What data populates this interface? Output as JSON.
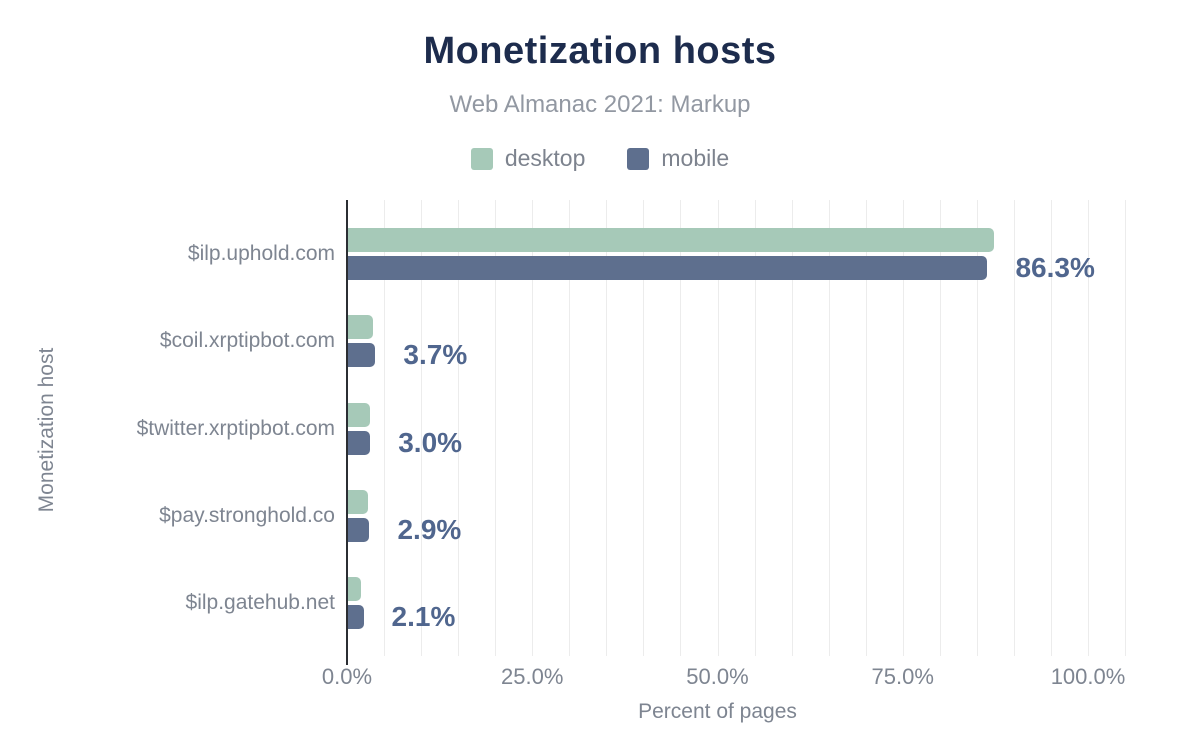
{
  "chart_data": {
    "type": "bar",
    "orientation": "horizontal",
    "title": "Monetization hosts",
    "subtitle": "Web Almanac 2021: Markup",
    "categories": [
      "$ilp.uphold.com",
      "$coil.xrptipbot.com",
      "$twitter.xrptipbot.com",
      "$pay.stronghold.co",
      "$ilp.gatehub.net"
    ],
    "series": [
      {
        "name": "desktop",
        "color": "#a6c9b8",
        "values": [
          87.2,
          3.4,
          3.0,
          2.7,
          1.7
        ]
      },
      {
        "name": "mobile",
        "color": "#5e6f8e",
        "values": [
          86.3,
          3.7,
          3.0,
          2.9,
          2.1
        ]
      }
    ],
    "value_labels": [
      "86.3%",
      "3.7%",
      "3.0%",
      "2.9%",
      "2.1%"
    ],
    "value_labels_for_series": "mobile",
    "xlabel": "Percent of pages",
    "ylabel": "Monetization host",
    "x_ticks": [
      {
        "value": 0,
        "label": "0.0%"
      },
      {
        "value": 25,
        "label": "25.0%"
      },
      {
        "value": 50,
        "label": "50.0%"
      },
      {
        "value": 75,
        "label": "75.0%"
      },
      {
        "value": 100,
        "label": "100.0%"
      }
    ],
    "xlim": [
      0,
      107
    ],
    "grid": {
      "interval": 5,
      "max": 105,
      "color": "#ececec",
      "on": true
    },
    "legend_position": "top"
  },
  "colors": {
    "title": "#1d2c4d",
    "subtitle": "#9298a2",
    "axis_text": "#7e8591",
    "value_label": "#50668e",
    "axis_line": "#2b2e33",
    "background": "#ffffff"
  }
}
